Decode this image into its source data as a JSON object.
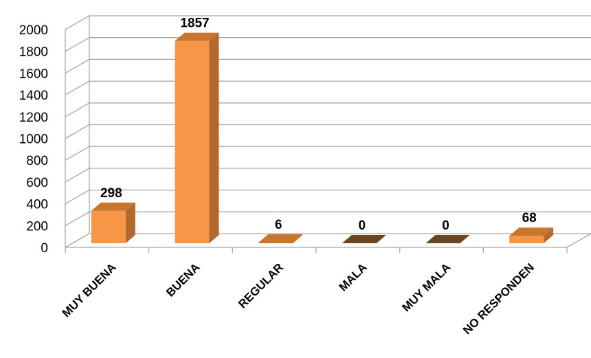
{
  "chart_data": {
    "type": "bar",
    "style": "3d-column",
    "categories": [
      "MUY BUENA",
      "BUENA",
      "REGULAR",
      "MALA",
      "MUY MALA",
      "NO RESPONDEN"
    ],
    "values": [
      298,
      1857,
      6,
      0,
      0,
      68
    ],
    "data_labels": [
      "298",
      "1857",
      "6",
      "0",
      "0",
      "68"
    ],
    "yticks": [
      "0",
      "200",
      "400",
      "600",
      "800",
      "1000",
      "1200",
      "1400",
      "1600",
      "1800",
      "2000"
    ],
    "ylim": [
      0,
      2000
    ],
    "grid": true,
    "legend": "none",
    "colors": {
      "bar_front": "#F79646",
      "bar_side": "#B2682F",
      "bar_top": "#C9752E",
      "zero_bar": "#6B4420",
      "grid": "#A6A6A6"
    }
  }
}
